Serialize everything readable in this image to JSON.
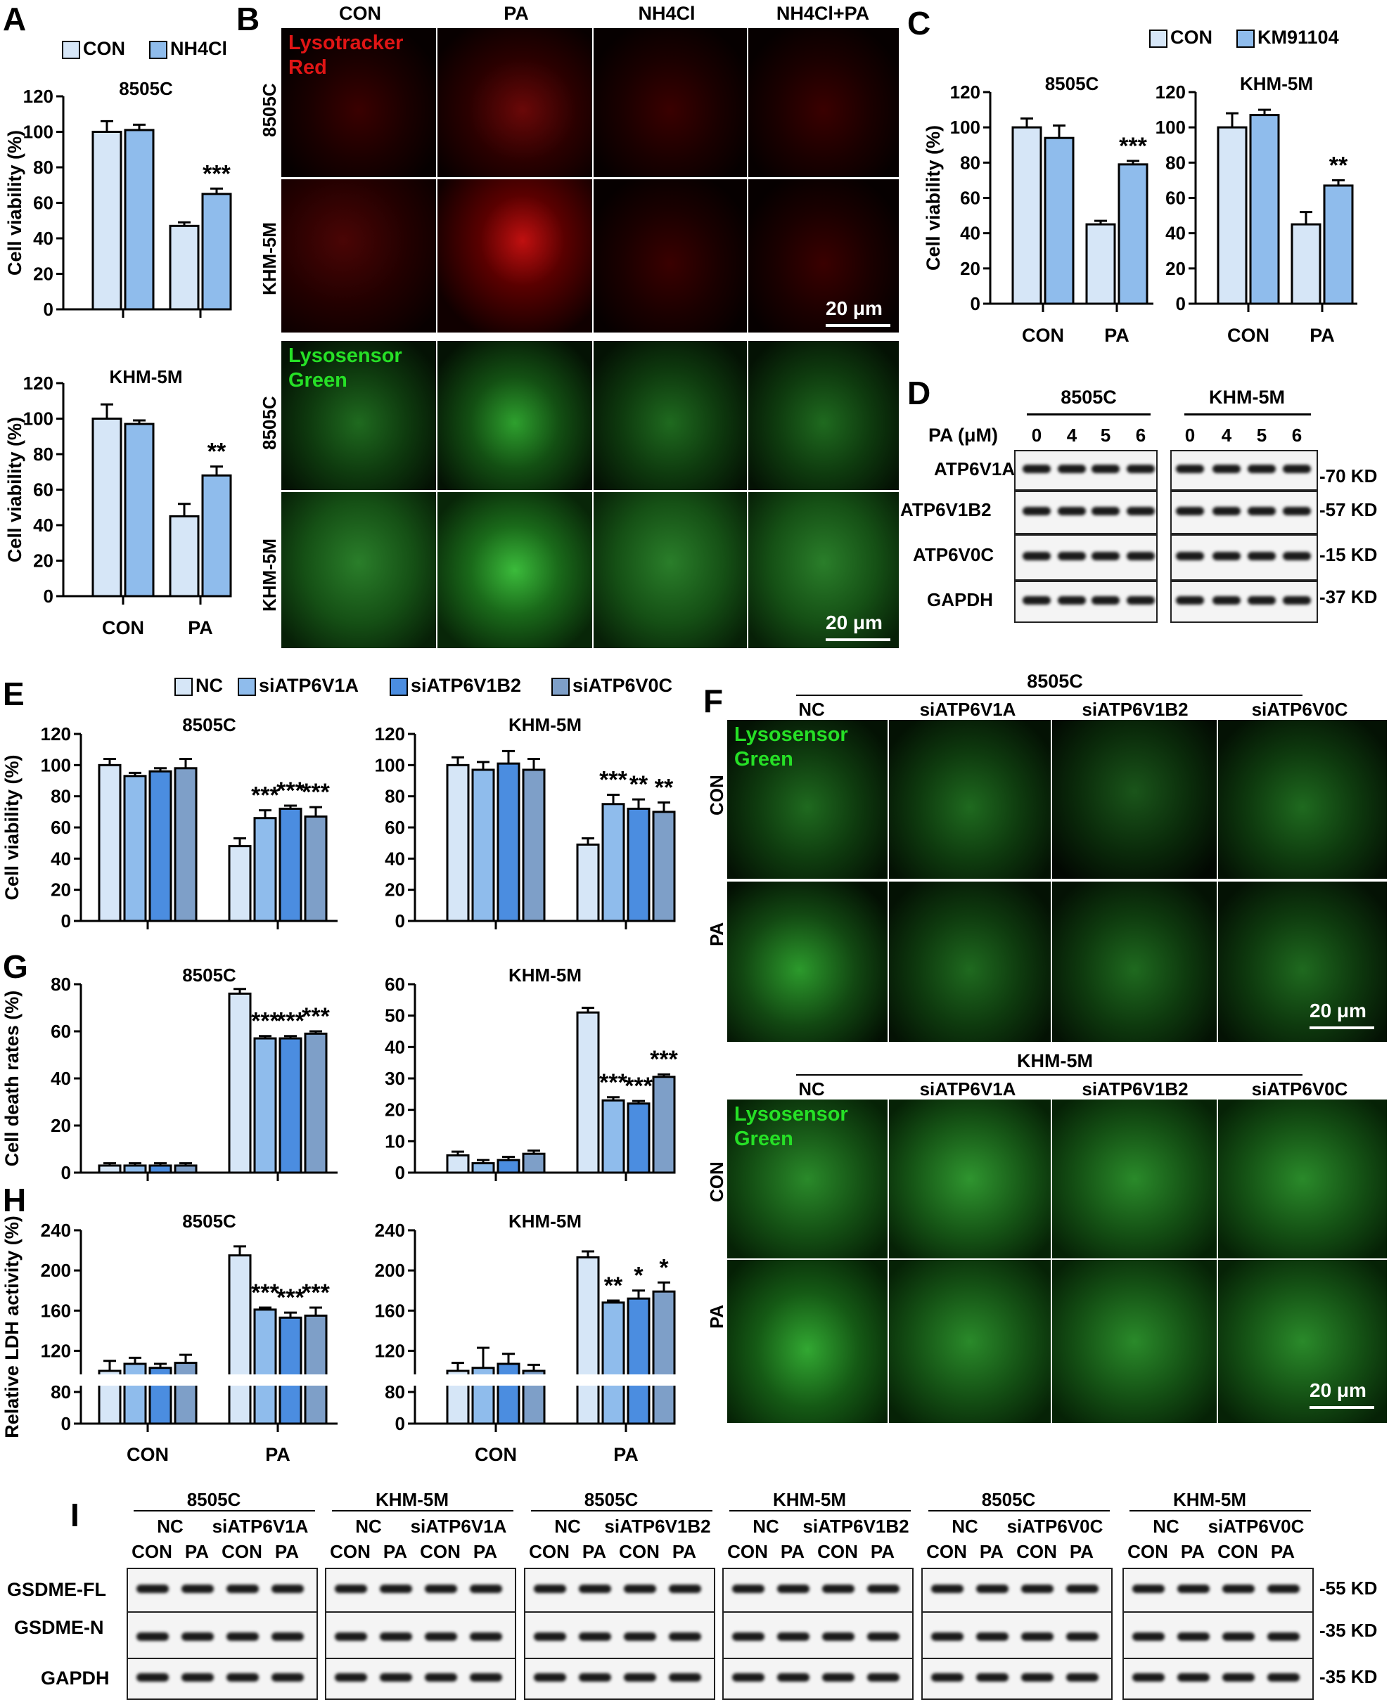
{
  "panels": {
    "A": "A",
    "B": "B",
    "C": "C",
    "D": "D",
    "E": "E",
    "F": "F",
    "G": "G",
    "H": "H",
    "I": "I"
  },
  "colors": {
    "light": "#d6e6f7",
    "mid": "#8fbcec",
    "dark": "#4b8de0",
    "slate": "#7e9fc8"
  },
  "common": {
    "legend_con": "CON",
    "legend_nh4cl": "NH4Cl",
    "legend_km": "KM91104",
    "si_nc": "NC",
    "si_v1a": "siATP6V1A",
    "si_v1b2": "siATP6V1B2",
    "si_v0c": "siATP6V0C",
    "con": "CON",
    "pa": "PA",
    "c8505": "8505C",
    "khm": "KHM-5M",
    "viability": "Cell viability (%)",
    "death": "Cell death rates (%)",
    "ldh": "Relative LDH activity (%)",
    "scale": "20 μm"
  },
  "B": {
    "cols": [
      "CON",
      "PA",
      "NH4Cl",
      "NH4Cl+PA"
    ],
    "rows": [
      "8505C",
      "KHM-5M",
      "8505C",
      "KHM-5M"
    ],
    "red_label_1": "Lysotracker",
    "red_label_2": "Red",
    "green_label_1": "Lysosensor",
    "green_label_2": "Green"
  },
  "D": {
    "pa_label": "PA (μM)",
    "doses": [
      "0",
      "4",
      "5",
      "6"
    ],
    "proteins": [
      "ATP6V1A",
      "ATP6V1B2",
      "ATP6V0C",
      "GAPDH"
    ],
    "sizes": [
      "-70 KD",
      "-57 KD",
      "-15 KD",
      "-37 KD"
    ]
  },
  "F": {
    "lysosensor_1": "Lysosensor",
    "lysosensor_2": "Green"
  },
  "I": {
    "groups": [
      {
        "cell": "8505C",
        "si": "siATP6V1A"
      },
      {
        "cell": "KHM-5M",
        "si": "siATP6V1A"
      },
      {
        "cell": "8505C",
        "si": "siATP6V1B2"
      },
      {
        "cell": "KHM-5M",
        "si": "siATP6V1B2"
      },
      {
        "cell": "8505C",
        "si": "siATP6V0C"
      },
      {
        "cell": "KHM-5M",
        "si": "siATP6V0C"
      }
    ],
    "rows": [
      "GSDME-FL",
      "GSDME-N",
      "GAPDH"
    ],
    "sizes": [
      "-55 KD",
      "-35 KD",
      "-35 KD"
    ]
  },
  "chart_data": [
    {
      "id": "A-8505C",
      "type": "bar",
      "title": "8505C",
      "ylabel": "Cell viability (%)",
      "ylim": [
        0,
        120
      ],
      "yticks": [
        0,
        20,
        40,
        60,
        80,
        100,
        120
      ],
      "categories": [
        "CON",
        "PA"
      ],
      "series": [
        {
          "name": "CON",
          "values": [
            100,
            47
          ],
          "err": [
            6,
            2
          ]
        },
        {
          "name": "NH4Cl",
          "values": [
            101,
            65
          ],
          "err": [
            3,
            3
          ]
        }
      ],
      "annotations": [
        "",
        "***"
      ]
    },
    {
      "id": "A-KHM",
      "type": "bar",
      "title": "KHM-5M",
      "ylabel": "Cell viability (%)",
      "ylim": [
        0,
        120
      ],
      "yticks": [
        0,
        20,
        40,
        60,
        80,
        100,
        120
      ],
      "categories": [
        "CON",
        "PA"
      ],
      "series": [
        {
          "name": "CON",
          "values": [
            100,
            45
          ],
          "err": [
            8,
            7
          ]
        },
        {
          "name": "NH4Cl",
          "values": [
            97,
            68
          ],
          "err": [
            2,
            5
          ]
        }
      ],
      "annotations": [
        "",
        "**"
      ]
    },
    {
      "id": "C-8505C",
      "type": "bar",
      "title": "8505C",
      "ylabel": "Cell viability (%)",
      "ylim": [
        0,
        120
      ],
      "yticks": [
        0,
        20,
        40,
        60,
        80,
        100,
        120
      ],
      "categories": [
        "CON",
        "PA"
      ],
      "series": [
        {
          "name": "CON",
          "values": [
            100,
            45
          ],
          "err": [
            5,
            2
          ]
        },
        {
          "name": "KM91104",
          "values": [
            94,
            79
          ],
          "err": [
            7,
            2
          ]
        }
      ],
      "annotations": [
        "",
        "***"
      ]
    },
    {
      "id": "C-KHM",
      "type": "bar",
      "title": "KHM-5M",
      "ylabel": "",
      "ylim": [
        0,
        120
      ],
      "yticks": [
        0,
        20,
        40,
        60,
        80,
        100,
        120
      ],
      "categories": [
        "CON",
        "PA"
      ],
      "series": [
        {
          "name": "CON",
          "values": [
            100,
            45
          ],
          "err": [
            8,
            7
          ]
        },
        {
          "name": "KM91104",
          "values": [
            107,
            67
          ],
          "err": [
            3,
            3
          ]
        }
      ],
      "annotations": [
        "",
        "**"
      ]
    },
    {
      "id": "E-8505C",
      "type": "bar",
      "title": "8505C",
      "ylabel": "Cell viability (%)",
      "ylim": [
        0,
        120
      ],
      "yticks": [
        0,
        20,
        40,
        60,
        80,
        100,
        120
      ],
      "categories": [
        "CON",
        "PA"
      ],
      "series": [
        {
          "name": "NC",
          "values": [
            100,
            48
          ],
          "err": [
            4,
            5
          ]
        },
        {
          "name": "siATP6V1A",
          "values": [
            93,
            66
          ],
          "err": [
            2,
            5
          ]
        },
        {
          "name": "siATP6V1B2",
          "values": [
            96,
            72
          ],
          "err": [
            2,
            2
          ]
        },
        {
          "name": "siATP6V0C",
          "values": [
            98,
            67
          ],
          "err": [
            6,
            6
          ]
        }
      ],
      "annotations": [
        [
          "",
          "",
          "",
          ""
        ],
        [
          "",
          "***",
          "***",
          "***"
        ]
      ]
    },
    {
      "id": "E-KHM",
      "type": "bar",
      "title": "KHM-5M",
      "ylabel": "",
      "ylim": [
        0,
        120
      ],
      "yticks": [
        0,
        20,
        40,
        60,
        80,
        100,
        120
      ],
      "categories": [
        "CON",
        "PA"
      ],
      "series": [
        {
          "name": "NC",
          "values": [
            100,
            49
          ],
          "err": [
            5,
            4
          ]
        },
        {
          "name": "siATP6V1A",
          "values": [
            97,
            75
          ],
          "err": [
            5,
            6
          ]
        },
        {
          "name": "siATP6V1B2",
          "values": [
            101,
            72
          ],
          "err": [
            8,
            6
          ]
        },
        {
          "name": "siATP6V0C",
          "values": [
            97,
            70
          ],
          "err": [
            7,
            6
          ]
        }
      ],
      "annotations": [
        [
          "",
          "",
          "",
          ""
        ],
        [
          "",
          "***",
          "**",
          "**"
        ]
      ]
    },
    {
      "id": "G-8505C",
      "type": "bar",
      "title": "8505C",
      "ylabel": "Cell death rates (%)",
      "ylim": [
        0,
        80
      ],
      "yticks": [
        0,
        20,
        40,
        60,
        80
      ],
      "categories": [
        "CON",
        "PA"
      ],
      "series": [
        {
          "name": "NC",
          "values": [
            3,
            76
          ],
          "err": [
            1,
            2
          ]
        },
        {
          "name": "siATP6V1A",
          "values": [
            3,
            57
          ],
          "err": [
            1,
            1
          ]
        },
        {
          "name": "siATP6V1B2",
          "values": [
            3,
            57
          ],
          "err": [
            1,
            1
          ]
        },
        {
          "name": "siATP6V0C",
          "values": [
            3,
            59
          ],
          "err": [
            1,
            1
          ]
        }
      ],
      "annotations": [
        [
          "",
          "",
          "",
          ""
        ],
        [
          "",
          "***",
          "***",
          "***"
        ]
      ]
    },
    {
      "id": "G-KHM",
      "type": "bar",
      "title": "KHM-5M",
      "ylabel": "",
      "ylim": [
        0,
        60
      ],
      "yticks": [
        0,
        10,
        20,
        30,
        40,
        50,
        60
      ],
      "categories": [
        "CON",
        "PA"
      ],
      "series": [
        {
          "name": "NC",
          "values": [
            5.5,
            51
          ],
          "err": [
            1.2,
            1.5
          ]
        },
        {
          "name": "siATP6V1A",
          "values": [
            3,
            23
          ],
          "err": [
            1,
            1
          ]
        },
        {
          "name": "siATP6V1B2",
          "values": [
            4,
            22
          ],
          "err": [
            1,
            0.8
          ]
        },
        {
          "name": "siATP6V0C",
          "values": [
            6,
            30.5
          ],
          "err": [
            1,
            0.8
          ]
        }
      ],
      "annotations": [
        [
          "",
          "",
          "",
          ""
        ],
        [
          "",
          "***",
          "***",
          "***"
        ]
      ]
    },
    {
      "id": "H-8505C",
      "type": "bar",
      "title": "8505C",
      "ylabel": "Relative LDH activity (%)",
      "ylim": [
        0,
        240
      ],
      "axis_break": [
        80,
        100
      ],
      "yticks": [
        0,
        80,
        120,
        160,
        200,
        240
      ],
      "categories": [
        "CON",
        "PA"
      ],
      "series": [
        {
          "name": "NC",
          "values": [
            100,
            215
          ],
          "err": [
            10,
            9
          ]
        },
        {
          "name": "siATP6V1A",
          "values": [
            107,
            161
          ],
          "err": [
            6,
            2
          ]
        },
        {
          "name": "siATP6V1B2",
          "values": [
            103,
            153
          ],
          "err": [
            4,
            5
          ]
        },
        {
          "name": "siATP6V0C",
          "values": [
            108,
            155
          ],
          "err": [
            8,
            8
          ]
        }
      ],
      "annotations": [
        [
          "",
          "",
          "",
          ""
        ],
        [
          "",
          "***",
          "***",
          "***"
        ]
      ]
    },
    {
      "id": "H-KHM",
      "type": "bar",
      "title": "KHM-5M",
      "ylabel": "",
      "ylim": [
        0,
        240
      ],
      "axis_break": [
        80,
        100
      ],
      "yticks": [
        0,
        80,
        120,
        160,
        200,
        240
      ],
      "categories": [
        "CON",
        "PA"
      ],
      "series": [
        {
          "name": "NC",
          "values": [
            100,
            213
          ],
          "err": [
            8,
            6
          ]
        },
        {
          "name": "siATP6V1A",
          "values": [
            103,
            168
          ],
          "err": [
            20,
            2
          ]
        },
        {
          "name": "siATP6V1B2",
          "values": [
            107,
            172
          ],
          "err": [
            10,
            8
          ]
        },
        {
          "name": "siATP6V0C",
          "values": [
            100,
            179
          ],
          "err": [
            6,
            9
          ]
        }
      ],
      "annotations": [
        [
          "",
          "",
          "",
          ""
        ],
        [
          "",
          "**",
          "*",
          "*"
        ]
      ]
    }
  ]
}
